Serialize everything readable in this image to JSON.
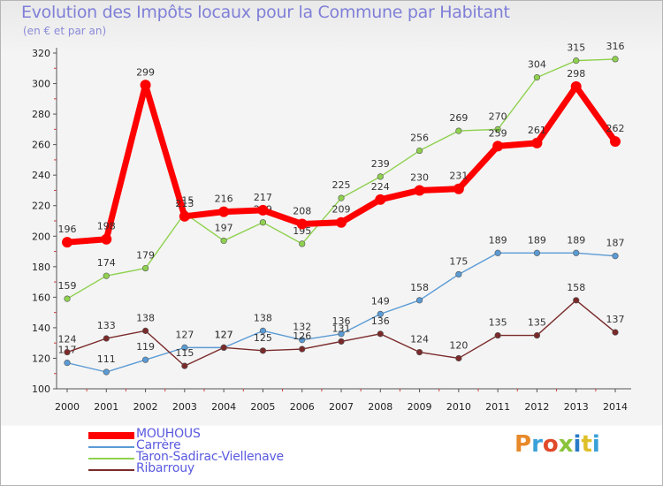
{
  "header": {
    "title": "Evolution des Impôts locaux pour la Commune par Habitant",
    "subtitle": "(en € et par an)"
  },
  "logo": {
    "text": "Proxiti",
    "colors": [
      "#e8892a",
      "#3aa0d8",
      "#e04a2a",
      "#8ac43a",
      "#2a7ac8",
      "#e0c02a",
      "#3aa0d8"
    ]
  },
  "chart_data": {
    "type": "line",
    "title": "Evolution des Impôts locaux pour la Commune par Habitant",
    "subtitle": "(en € et par an)",
    "x": [
      "2000",
      "2001",
      "2002",
      "2003",
      "2004",
      "2005",
      "2006",
      "2007",
      "2008",
      "2009",
      "2010",
      "2011",
      "2012",
      "2013",
      "2014"
    ],
    "y_ticks": [
      "100",
      "120",
      "140",
      "160",
      "180",
      "200",
      "220",
      "240",
      "260",
      "280",
      "300",
      "320"
    ],
    "ylim": [
      100,
      320
    ],
    "grid": false,
    "legend_position": "bottom-left",
    "series": [
      {
        "name": "MOUHOUS",
        "color": "#ff0000",
        "emphasis": true,
        "values": [
          196,
          198,
          299,
          213,
          216,
          217,
          208,
          209,
          224,
          230,
          231,
          259,
          261,
          298,
          262
        ],
        "labels": [
          "196",
          "198",
          "299",
          "213",
          "216",
          "217",
          "208",
          "209",
          "224",
          "230",
          "231",
          "259",
          "261",
          "298",
          "262"
        ]
      },
      {
        "name": "Carrère",
        "color": "#5b9bd5",
        "emphasis": false,
        "values": [
          117,
          111,
          119,
          127,
          127,
          138,
          132,
          136,
          149,
          158,
          175,
          189,
          189,
          189,
          187
        ],
        "labels": [
          "117",
          "111",
          "119",
          "127",
          "127",
          "138",
          "132",
          "136",
          "149",
          "158",
          "175",
          "189",
          "189",
          "189",
          "187"
        ]
      },
      {
        "name": "Taron-Sadirac-Viellenave",
        "color": "#8fd14f",
        "emphasis": false,
        "values": [
          159,
          174,
          179,
          215,
          197,
          209,
          195,
          225,
          239,
          256,
          269,
          270,
          304,
          315,
          316
        ],
        "labels": [
          "159",
          "174",
          "179",
          "215",
          "197",
          "209",
          "195",
          "225",
          "239",
          "256",
          "269",
          "270",
          "304",
          "315",
          "316"
        ]
      },
      {
        "name": "Ribarrouy",
        "color": "#7a2a2a",
        "emphasis": false,
        "values": [
          124,
          133,
          138,
          115,
          127,
          125,
          126,
          131,
          136,
          124,
          120,
          135,
          135,
          158,
          137
        ],
        "labels": [
          "124",
          "133",
          "138",
          "115",
          "127",
          "125",
          "126",
          "131",
          "136",
          "124",
          "120",
          "135",
          "135",
          "158",
          "137"
        ]
      }
    ]
  }
}
